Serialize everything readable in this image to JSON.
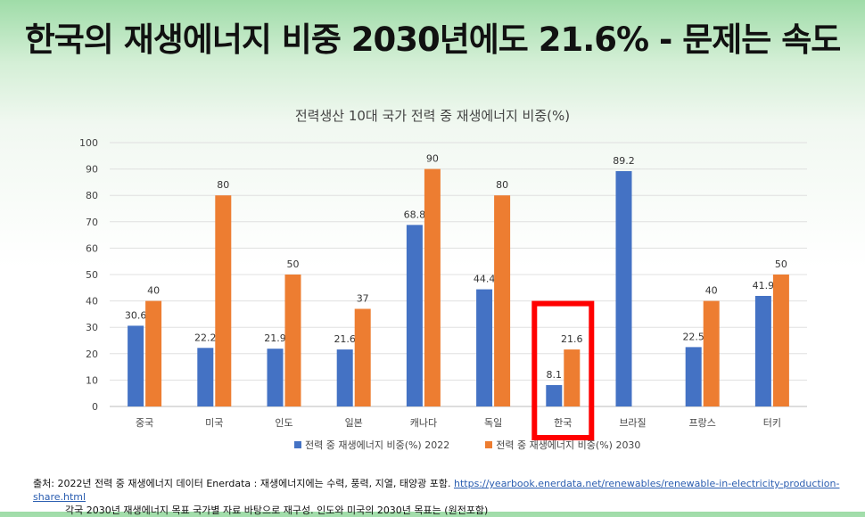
{
  "title": "한국의 재생에너지 비중 2030년에도 21.6% - 문제는 속도",
  "source": {
    "line1": "출처: 2022년 전력 중 재생에너지 데이터 Enerdata : 재생에너지에는 수력, 풍력, 지열, 태양광 포함.",
    "url": "https://yearbook.enerdata.net/renewables/renewable-in-electricity-production-share.html",
    "line2": "각국 2030년 재생에너지 목표 국가별 자료 바탕으로 재구성. 인도와 미국의 2030년 목표는 (원전포함)"
  },
  "chart_data": {
    "type": "bar",
    "title": "전력생산 10대 국가 전력 중 재생에너지 비중(%)",
    "categories": [
      "중국",
      "미국",
      "인도",
      "일본",
      "캐나다",
      "독일",
      "한국",
      "브라질",
      "프랑스",
      "터키"
    ],
    "series": [
      {
        "name": "전력 중 재생에너지 비중(%)  2022",
        "color": "#4472c4",
        "values": [
          30.6,
          22.2,
          21.9,
          21.6,
          68.8,
          44.4,
          8.1,
          89.2,
          22.5,
          41.9
        ]
      },
      {
        "name": "전력 중 재생에너지 비중(%)  2030",
        "color": "#ed7d31",
        "values": [
          40,
          80,
          50,
          37,
          90,
          80,
          21.6,
          null,
          40,
          50
        ]
      }
    ],
    "ylim": [
      0,
      100
    ],
    "yticks": [
      0,
      10,
      20,
      30,
      40,
      50,
      60,
      70,
      80,
      90,
      100
    ],
    "grid": true,
    "legend": "bottom",
    "highlight": {
      "category": "한국",
      "color": "#ff0000"
    }
  }
}
